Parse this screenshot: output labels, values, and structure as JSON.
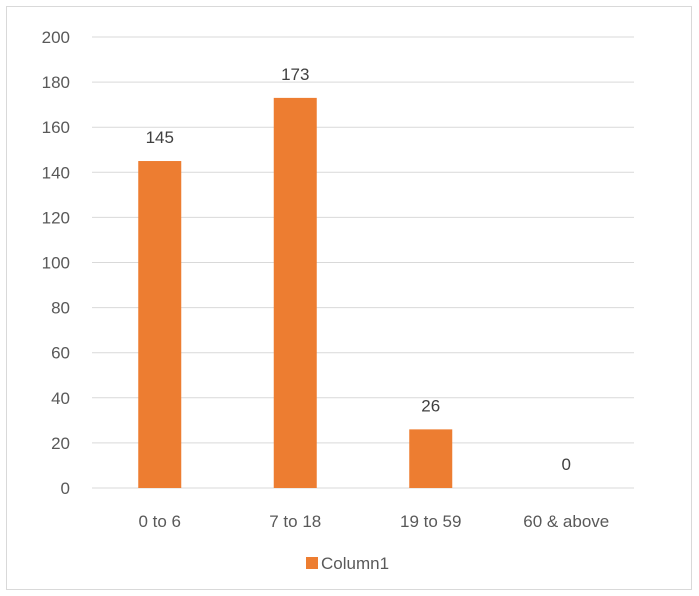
{
  "chart_data": {
    "type": "bar",
    "categories": [
      "0 to 6",
      "7 to 18",
      "19 to 59",
      "60 & above"
    ],
    "series": [
      {
        "name": "Column1",
        "values": [
          145,
          173,
          26,
          0
        ],
        "color": "#ED7D31"
      }
    ],
    "data_labels": [
      "145",
      "173",
      "26",
      "0"
    ],
    "ylim": [
      0,
      200
    ],
    "y_ticks": [
      0,
      20,
      40,
      60,
      80,
      100,
      120,
      140,
      160,
      180,
      200
    ],
    "grid": true,
    "gridline_color": "#d9d9d9",
    "legend_position": "bottom",
    "title": "",
    "xlabel": "",
    "ylabel": ""
  }
}
